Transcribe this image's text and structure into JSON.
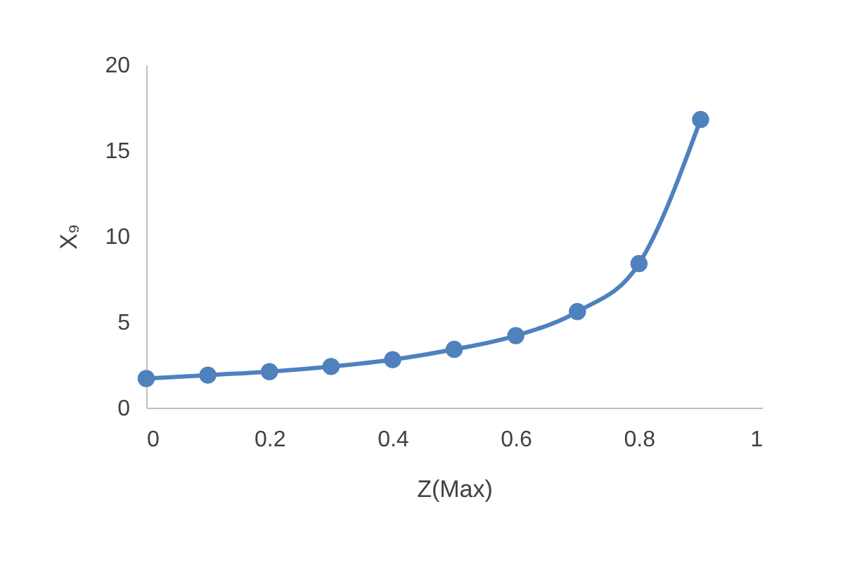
{
  "chart_data": {
    "type": "line",
    "xlabel": "Z(Max)",
    "ylabel": "X₉",
    "x": [
      0,
      0.1,
      0.2,
      0.3,
      0.4,
      0.5,
      0.6,
      0.7,
      0.8,
      0.9
    ],
    "series": [
      {
        "color": "#4f81bd",
        "values": [
          1.7,
          1.9,
          2.1,
          2.4,
          2.8,
          3.4,
          4.2,
          5.6,
          8.4,
          16.8
        ]
      }
    ],
    "xlim": [
      0,
      1
    ],
    "xticks": [
      0,
      0.2,
      0.4,
      0.6,
      0.8,
      1
    ],
    "ylim": [
      0,
      20
    ],
    "yticks": [
      0,
      5,
      10,
      15,
      20
    ],
    "grid": false,
    "legend": false,
    "marker": "circle",
    "line_style": "solid"
  }
}
